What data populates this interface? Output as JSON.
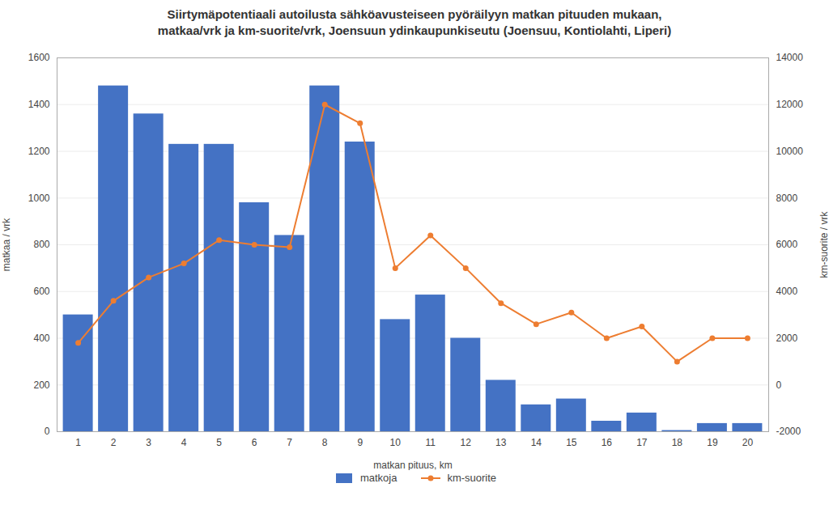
{
  "chart_data": {
    "type": "bar",
    "title": "Siirtymäpotentiaali autoilusta sähköavusteiseen pyöräilyyn matkan pituuden mukaan,\nmatkaa/vrk ja km-suorite/vrk, Joensuun ydinkaupunkiseutu (Joensuu, Kontiolahti, Liperi)",
    "xlabel": "matkan pituus, km",
    "ylabel": "matkaa / vrk",
    "y2label": "km-suorite / vrk",
    "x": [
      1,
      2,
      3,
      4,
      5,
      6,
      7,
      8,
      9,
      10,
      11,
      12,
      13,
      14,
      15,
      16,
      17,
      18,
      19,
      20
    ],
    "xlim": [
      0.4,
      20.6
    ],
    "xticks": [
      1,
      2,
      3,
      4,
      5,
      6,
      7,
      8,
      9,
      10,
      11,
      12,
      13,
      14,
      15,
      16,
      17,
      18,
      19,
      20
    ],
    "ylim": [
      0,
      1600
    ],
    "yticks": [
      0,
      200,
      400,
      600,
      800,
      1000,
      1200,
      1400,
      1600
    ],
    "y2lim": [
      -2000,
      14000
    ],
    "y2ticks": [
      -2000,
      0,
      2000,
      4000,
      6000,
      8000,
      10000,
      12000,
      14000
    ],
    "grid": true,
    "legend": "bottom",
    "series": [
      {
        "name": "matkoja",
        "type": "bar",
        "color": "#4472C4",
        "values": [
          500,
          1480,
          1360,
          1230,
          1230,
          980,
          840,
          1480,
          1240,
          480,
          585,
          400,
          220,
          115,
          140,
          45,
          80,
          5,
          35,
          35
        ]
      },
      {
        "name": "km-suorite",
        "type": "line",
        "axis": "y2",
        "color": "#ED7D31",
        "marker": "circle",
        "values": [
          1800,
          3600,
          4600,
          5200,
          6200,
          6000,
          5900,
          12000,
          11200,
          5000,
          6400,
          5000,
          3500,
          2600,
          3100,
          2000,
          2500,
          1000,
          2000,
          2000
        ]
      }
    ]
  }
}
